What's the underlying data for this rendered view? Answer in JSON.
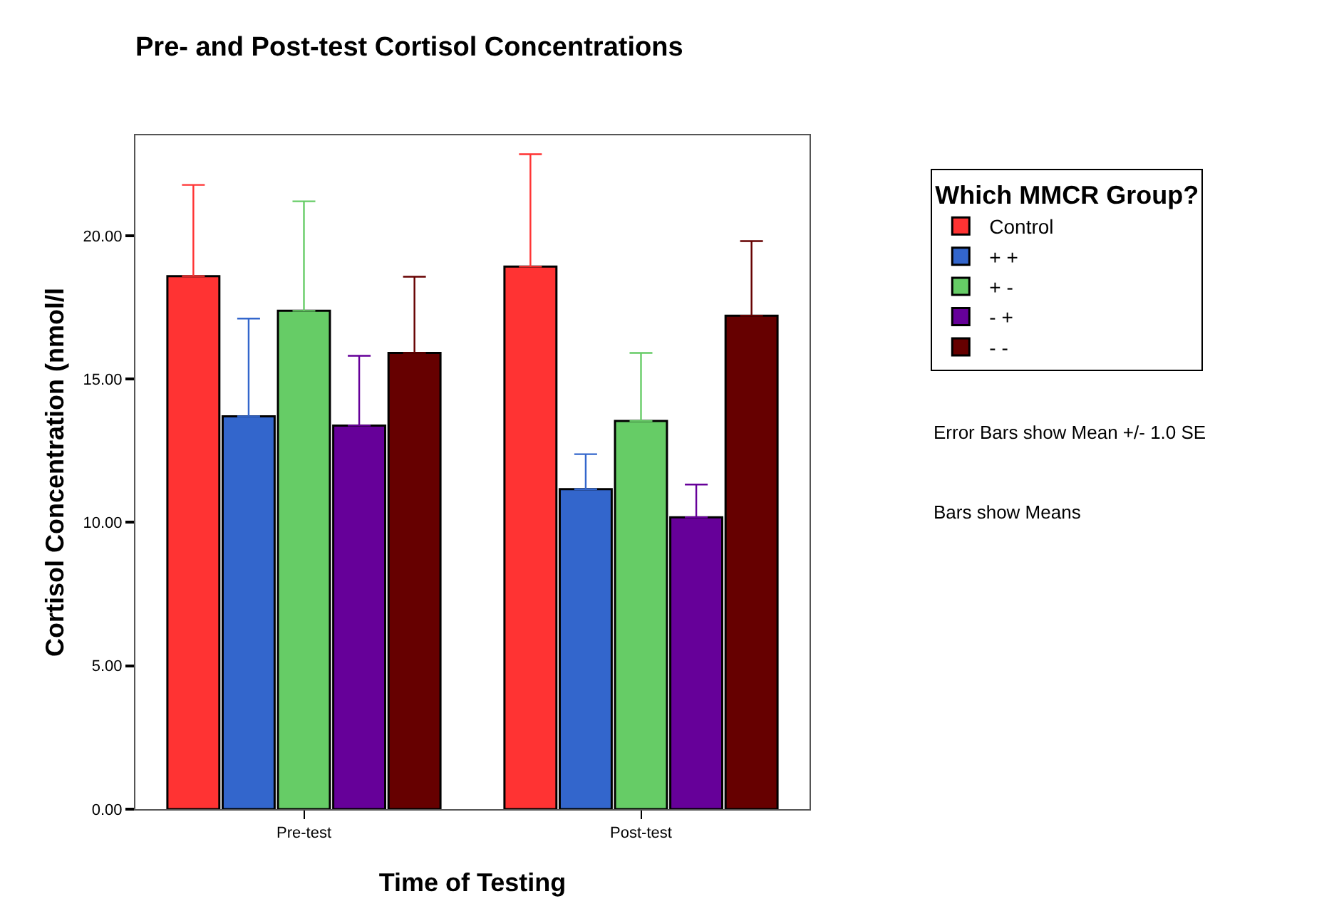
{
  "chart_data": {
    "type": "bar",
    "title": "Pre- and Post-test Cortisol Concentrations",
    "xlabel": "Time of Testing",
    "ylabel": "Cortisol Concentration (nmol/l",
    "legend_title": "Which MMCR Group?",
    "categories": [
      "Pre-test",
      "Post-test"
    ],
    "series": [
      {
        "name": "Control",
        "color": "#ff3333",
        "values": [
          18.59,
          18.92
        ],
        "errors": [
          [
            18.59,
            21.77
          ],
          [
            18.92,
            22.84
          ]
        ]
      },
      {
        "name": "+ +",
        "color": "#3366cc",
        "values": [
          13.7,
          11.16
        ],
        "errors": [
          [
            13.7,
            17.11
          ],
          [
            11.16,
            12.38
          ]
        ]
      },
      {
        "name": "+ -",
        "color": "#66cc66",
        "values": [
          17.38,
          13.54
        ],
        "errors": [
          [
            17.38,
            21.2
          ],
          [
            13.54,
            15.91
          ]
        ]
      },
      {
        "name": "- +",
        "color": "#660099",
        "values": [
          13.38,
          10.18
        ],
        "errors": [
          [
            13.38,
            15.81
          ],
          [
            10.18,
            11.32
          ]
        ]
      },
      {
        "name": "- -",
        "color": "#660000",
        "values": [
          15.91,
          17.21
        ],
        "errors": [
          [
            15.91,
            18.57
          ],
          [
            17.21,
            19.81
          ]
        ]
      }
    ],
    "ylim": [
      0,
      23.5
    ],
    "yticks": [
      {
        "value": 0,
        "label": "0.00"
      },
      {
        "value": 5,
        "label": "5.00"
      },
      {
        "value": 10,
        "label": "10.00"
      },
      {
        "value": 15,
        "label": "15.00"
      },
      {
        "value": 20,
        "label": "20.00"
      }
    ],
    "grid": false,
    "legend": "right",
    "annotations": [
      "Error Bars show Mean +/- 1.0 SE",
      "Bars show Means"
    ]
  }
}
